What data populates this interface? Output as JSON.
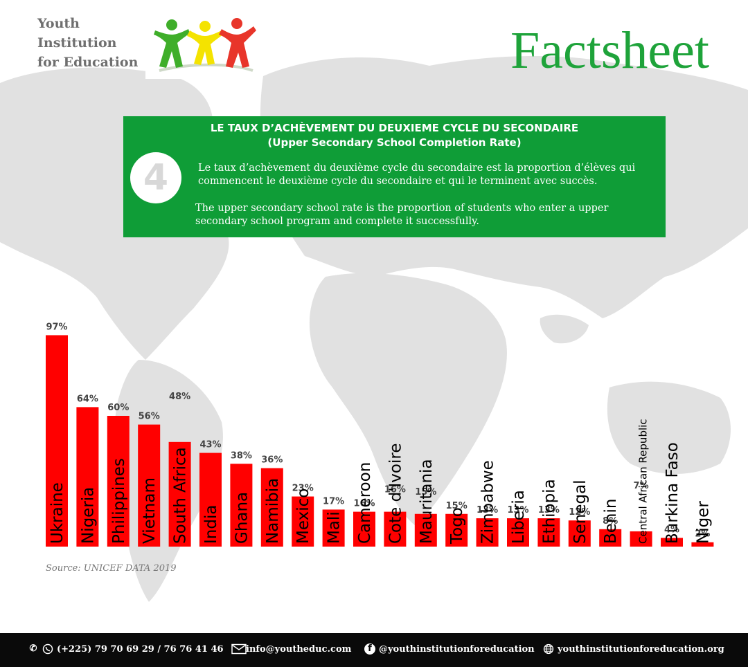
{
  "header": {
    "org_name_lines": [
      "Youth",
      "Institution",
      "for Education"
    ],
    "title": "Factsheet"
  },
  "info_box": {
    "heading_fr": "LE TAUX D’ACHÈVEMENT DU DEUXIEME CYCLE DU SECONDAIRE",
    "heading_en": "(Upper Secondary School Completion Rate)",
    "number": "4",
    "text_fr": "Le taux d’achèvement du deuxième cycle du secondaire est la proportion d’élèves qui commencent le deuxième cycle du secondaire et qui le terminent avec succès.",
    "text_en": "The upper secondary school rate is the proportion of students who enter a upper secondary school program and complete it successfully."
  },
  "chart_data": {
    "type": "bar",
    "title": "",
    "xlabel": "",
    "ylabel": "",
    "ylim": [
      0,
      100
    ],
    "bar_color": "#ff0000",
    "categories": [
      "Ukraine",
      "Nigeria",
      "Philippines",
      "Vietnam",
      "South Africa",
      "India",
      "Ghana",
      "Namibia",
      "Mexico",
      "Mali",
      "Cameroon",
      "Cote d'Ivoire",
      "Mauritania",
      "Togo",
      "Zimbabwe",
      "Liberia",
      "Ethiopia",
      "Senegal",
      "Benin",
      "Central African Republic",
      "Burkina Faso",
      "Niger"
    ],
    "values": [
      97,
      64,
      60,
      56,
      48,
      43,
      38,
      36,
      23,
      17,
      16,
      16,
      15,
      15,
      13,
      13,
      13,
      12,
      8,
      7,
      4,
      2
    ],
    "labels": [
      "97%",
      "64%",
      "60%",
      "56%",
      "48%",
      "43%",
      "38%",
      "36%",
      "23%",
      "17%",
      "16%",
      "16%",
      "15%",
      "15%",
      "13%",
      "13%",
      "13%",
      "12%",
      "8%",
      "7%",
      "4%",
      "2%"
    ],
    "grid": false,
    "legend": "none"
  },
  "source": "Source: UNICEF DATA 2019",
  "footer": {
    "phone": "(+225) 79 70 69 29 / 76 76 41 46",
    "email": "info@youtheduc.com",
    "facebook": "@youthinstitutionforeducation",
    "website": "youthinstitutionforeducation.org",
    "icons": [
      "phone-icon",
      "whatsapp-icon",
      "email-icon",
      "facebook-icon",
      "globe-icon"
    ]
  },
  "colors": {
    "green": "#0f9d37",
    "title_green": "#1ea33a",
    "bar_red": "#ff0000",
    "footer_bg": "#0a0a0a"
  }
}
